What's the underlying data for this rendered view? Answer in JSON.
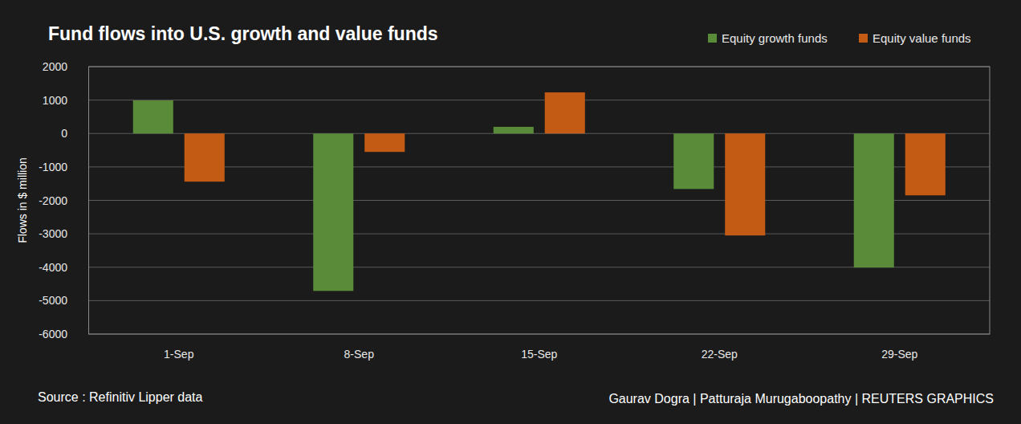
{
  "chart_data": {
    "type": "bar",
    "title": "Fund flows into U.S. growth and value funds",
    "y_label": "Flows in $ million",
    "annotations": [
      "Source : Refinitiv Lipper data",
      "Gaurav Dogra | Patturaja Murugaboopathy | REUTERS GRAPHICS"
    ],
    "categories": [
      "1-Sep",
      "8-Sep",
      "15-Sep",
      "22-Sep",
      "29-Sep"
    ],
    "series": [
      {
        "name": "Equity growth funds",
        "color": "#5a8b39",
        "values": [
          990,
          -4710,
          200,
          -1660,
          -4010
        ]
      },
      {
        "name": "Equity value funds",
        "color": "#c45b14",
        "values": [
          -1440,
          -550,
          1230,
          -3050,
          -1850
        ]
      }
    ],
    "ylim": [
      -6000,
      2000
    ],
    "yticks": [
      -6000,
      -5000,
      -4000,
      -3000,
      -2000,
      -1000,
      0,
      1000,
      2000
    ],
    "grid": true,
    "legend": "top-right"
  }
}
